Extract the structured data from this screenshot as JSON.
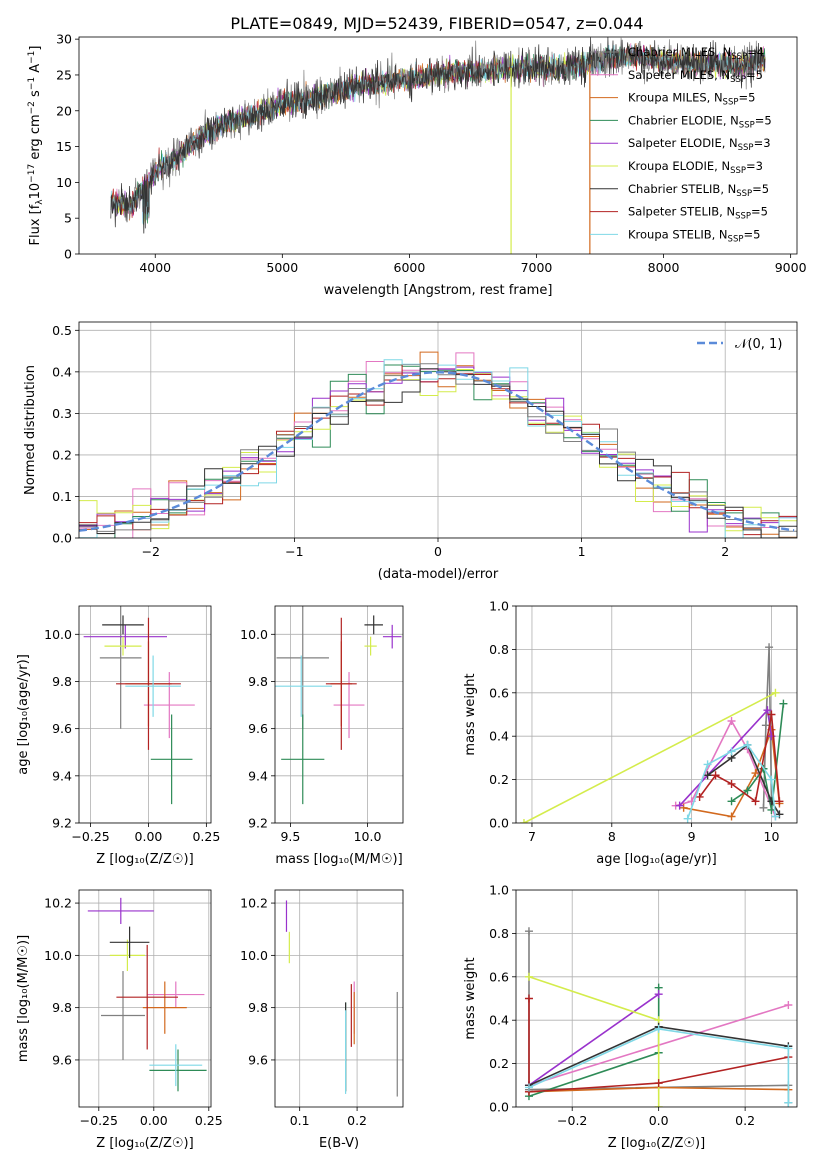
{
  "figure_title": "PLATE=0849, MJD=52439, FIBERID=0547, z=0.044",
  "models": [
    {
      "name": "Chabrier MILES, N",
      "nssp": "=4",
      "color": "#808080"
    },
    {
      "name": "Salpeter MILES, N",
      "nssp": "=5",
      "color": "#e377c2"
    },
    {
      "name": "Kroupa MILES, N",
      "nssp": "=5",
      "color": "#d2691e"
    },
    {
      "name": "Chabrier ELODIE, N",
      "nssp": "=5",
      "color": "#2e8b57"
    },
    {
      "name": "Salpeter ELODIE, N",
      "nssp": "=3",
      "color": "#9932cc"
    },
    {
      "name": "Kroupa ELODIE, N",
      "nssp": "=3",
      "color": "#d4ec4c"
    },
    {
      "name": "Chabrier STELIB, N",
      "nssp": "=5",
      "color": "#333333"
    },
    {
      "name": "Salpeter STELIB, N",
      "nssp": "=5",
      "color": "#b22222"
    },
    {
      "name": "Kroupa STELIB, N",
      "nssp": "=5",
      "color": "#7fd8e6"
    }
  ],
  "nssp_sub": "SSP",
  "chart_data": [
    {
      "id": "spectrum",
      "type": "line",
      "xlabel": "wavelength [Angstrom, rest frame]",
      "ylabel_parts": {
        "a": "Flux [f",
        "b": "λ",
        "c": "10",
        "d": "−17",
        "e": " erg cm",
        "f": "−2",
        "g": " s",
        "h": "−1",
        "i": " A",
        "j": "−1",
        "k": "]"
      },
      "xlim": [
        3400,
        9050
      ],
      "ylim": [
        0,
        30.3
      ],
      "xticks": [
        4000,
        5000,
        6000,
        7000,
        8000,
        9000
      ],
      "yticks": [
        0,
        5,
        10,
        15,
        20,
        25,
        30
      ],
      "observed_envelope": {
        "x": [
          3650,
          3800,
          4000,
          4200,
          4400,
          4600,
          4800,
          5000,
          5200,
          5400,
          5600,
          5800,
          6000,
          6200,
          6400,
          6600,
          6800,
          7000,
          7200,
          7400,
          7600,
          7800,
          8000,
          8200,
          8400,
          8600,
          8800
        ],
        "y": [
          7.5,
          6.5,
          11.5,
          14,
          17,
          18.5,
          19.5,
          21,
          21.5,
          22.5,
          23.5,
          24,
          24.5,
          25,
          25.5,
          25.5,
          26,
          26,
          26,
          26.5,
          27.5,
          27.5,
          27,
          26.5,
          26.5,
          26.5,
          27
        ]
      }
    },
    {
      "id": "residuals",
      "type": "bar",
      "xlabel": "(data-model)/error",
      "ylabel": "Normed distribution",
      "legend": "𝒩(0, 1)",
      "xlim": [
        -2.5,
        2.5
      ],
      "ylim": [
        0,
        0.52
      ],
      "xticks": [
        -2,
        -1,
        0,
        1,
        2
      ],
      "yticks": [
        0,
        0.1,
        0.2,
        0.3,
        0.4,
        0.5
      ],
      "bin_width": 0.125,
      "gaussian": {
        "mean": 0,
        "sigma": 1
      }
    },
    {
      "id": "age_vs_Z",
      "type": "scatter",
      "xlabel": "Z [log₁₀(Z/Z☉)]",
      "ylabel": "age  [log₁₀(age/yr)]",
      "xlim": [
        -0.3,
        0.27
      ],
      "ylim": [
        9.2,
        10.12
      ],
      "xticks": [
        -0.25,
        0.0,
        0.25
      ],
      "yticks": [
        9.2,
        9.4,
        9.6,
        9.8,
        10.0
      ],
      "points": [
        {
          "x": -0.12,
          "y": 9.9,
          "xerr": 0.09,
          "yerr": 0.3,
          "model": 0
        },
        {
          "x": 0.09,
          "y": 9.7,
          "xerr": 0.11,
          "yerr": 0.14,
          "model": 1
        },
        {
          "x": 0.0,
          "y": 9.79,
          "xerr": 0.1,
          "yerr": 0.18,
          "model": 2
        },
        {
          "x": 0.1,
          "y": 9.47,
          "xerr": 0.09,
          "yerr": 0.19,
          "model": 3
        },
        {
          "x": -0.1,
          "y": 9.99,
          "xerr": 0.18,
          "yerr": 0.05,
          "model": 4
        },
        {
          "x": -0.11,
          "y": 9.95,
          "xerr": 0.08,
          "yerr": 0.04,
          "model": 5
        },
        {
          "x": -0.11,
          "y": 10.04,
          "xerr": 0.09,
          "yerr": 0.04,
          "model": 6
        },
        {
          "x": 0.0,
          "y": 9.79,
          "xerr": 0.14,
          "yerr": 0.28,
          "model": 7
        },
        {
          "x": 0.02,
          "y": 9.78,
          "xerr": 0.12,
          "yerr": 0.13,
          "model": 8
        }
      ]
    },
    {
      "id": "age_vs_mass",
      "type": "scatter",
      "xlabel": "mass [log₁₀(M/M☉)]",
      "xlim": [
        9.4,
        10.23
      ],
      "ylim": [
        9.2,
        10.12
      ],
      "xticks": [
        9.5,
        10.0
      ],
      "yticks": [
        9.2,
        9.4,
        9.6,
        9.8,
        10.0
      ],
      "points": [
        {
          "x": 9.58,
          "y": 9.9,
          "xerr": 0.17,
          "yerr": 0.3,
          "model": 0
        },
        {
          "x": 9.88,
          "y": 9.7,
          "xerr": 0.1,
          "yerr": 0.14,
          "model": 1
        },
        {
          "x": 9.83,
          "y": 9.79,
          "xerr": 0.07,
          "yerr": 0.18,
          "model": 2
        },
        {
          "x": 9.58,
          "y": 9.47,
          "xerr": 0.14,
          "yerr": 0.19,
          "model": 3
        },
        {
          "x": 10.16,
          "y": 9.99,
          "xerr": 0.06,
          "yerr": 0.05,
          "model": 4
        },
        {
          "x": 10.02,
          "y": 9.95,
          "xerr": 0.04,
          "yerr": 0.04,
          "model": 5
        },
        {
          "x": 10.04,
          "y": 10.04,
          "xerr": 0.06,
          "yerr": 0.04,
          "model": 6
        },
        {
          "x": 9.83,
          "y": 9.79,
          "xerr": 0.1,
          "yerr": 0.28,
          "model": 7
        },
        {
          "x": 9.57,
          "y": 9.78,
          "xerr": 0.2,
          "yerr": 0.13,
          "model": 8
        }
      ]
    },
    {
      "id": "weight_vs_age",
      "type": "line",
      "xlabel": "age  [log₁₀(age/yr)]",
      "ylabel": "mass weight",
      "xlim": [
        6.8,
        10.32
      ],
      "ylim": [
        0,
        1.0
      ],
      "xticks": [
        7,
        8,
        9,
        10
      ],
      "yticks": [
        0.0,
        0.2,
        0.4,
        0.6,
        0.8,
        1.0
      ],
      "series": [
        {
          "model": 0,
          "x": [
            9.9,
            9.93,
            9.97,
            10.0
          ],
          "y": [
            0.07,
            0.45,
            0.81,
            0.1
          ]
        },
        {
          "model": 1,
          "x": [
            8.8,
            9.0,
            9.5,
            9.7,
            10.05
          ],
          "y": [
            0.08,
            0.1,
            0.47,
            0.34,
            0.03
          ]
        },
        {
          "model": 2,
          "x": [
            8.9,
            9.5,
            9.8,
            10.0,
            10.1
          ],
          "y": [
            0.07,
            0.03,
            0.23,
            0.43,
            0.09
          ]
        },
        {
          "model": 3,
          "x": [
            9.5,
            9.7,
            9.9,
            10.0,
            10.15
          ],
          "y": [
            0.1,
            0.15,
            0.25,
            0.06,
            0.55
          ]
        },
        {
          "model": 4,
          "x": [
            8.85,
            9.95,
            10.0
          ],
          "y": [
            0.08,
            0.52,
            0.4
          ]
        },
        {
          "model": 5,
          "x": [
            6.9,
            10.05
          ],
          "y": [
            0.0,
            0.6
          ]
        },
        {
          "model": 6,
          "x": [
            9.2,
            9.5,
            9.7,
            10.0,
            10.1
          ],
          "y": [
            0.22,
            0.3,
            0.36,
            0.1,
            0.04
          ]
        },
        {
          "model": 7,
          "x": [
            9.1,
            9.3,
            9.5,
            9.8,
            10.0,
            10.1
          ],
          "y": [
            0.12,
            0.22,
            0.18,
            0.1,
            0.5,
            0.1
          ]
        },
        {
          "model": 8,
          "x": [
            8.95,
            9.2,
            9.5,
            9.7,
            10.0,
            10.05
          ],
          "y": [
            0.02,
            0.27,
            0.33,
            0.36,
            0.2,
            0.03
          ]
        }
      ]
    },
    {
      "id": "mass_vs_Z",
      "type": "scatter",
      "xlabel": "Z [log₁₀(Z/Z☉)]",
      "ylabel": "mass [log₁₀(M/M☉)]",
      "xlim": [
        -0.34,
        0.26
      ],
      "ylim": [
        9.42,
        10.25
      ],
      "xticks": [
        -0.25,
        0.0,
        0.25
      ],
      "yticks": [
        9.6,
        9.8,
        10.0,
        10.2
      ],
      "points": [
        {
          "x": -0.14,
          "y": 9.77,
          "xerr": 0.1,
          "yerr": 0.17,
          "model": 0
        },
        {
          "x": 0.1,
          "y": 9.85,
          "xerr": 0.13,
          "yerr": 0.05,
          "model": 1
        },
        {
          "x": 0.05,
          "y": 9.8,
          "xerr": 0.1,
          "yerr": 0.1,
          "model": 2
        },
        {
          "x": 0.11,
          "y": 9.56,
          "xerr": 0.13,
          "yerr": 0.08,
          "model": 3
        },
        {
          "x": -0.15,
          "y": 10.17,
          "xerr": 0.15,
          "yerr": 0.05,
          "model": 4
        },
        {
          "x": -0.12,
          "y": 10.0,
          "xerr": 0.08,
          "yerr": 0.06,
          "model": 5
        },
        {
          "x": -0.11,
          "y": 10.05,
          "xerr": 0.09,
          "yerr": 0.06,
          "model": 6
        },
        {
          "x": -0.03,
          "y": 9.84,
          "xerr": 0.14,
          "yerr": 0.2,
          "model": 7
        },
        {
          "x": 0.1,
          "y": 9.58,
          "xerr": 0.12,
          "yerr": 0.08,
          "model": 8
        }
      ]
    },
    {
      "id": "mass_vs_ebv",
      "type": "scatter",
      "xlabel": "E(B-V)",
      "xlim": [
        0.057,
        0.28
      ],
      "ylim": [
        9.42,
        10.25
      ],
      "xticks": [
        0.1,
        0.2
      ],
      "yticks": [
        9.6,
        9.8,
        10.0,
        10.2
      ],
      "points": [
        {
          "x": 0.27,
          "y": 9.66,
          "yerr": 0.2,
          "model": 0
        },
        {
          "x": 0.195,
          "y": 9.8,
          "yerr": 0.1,
          "model": 1
        },
        {
          "x": 0.195,
          "y": 9.76,
          "yerr": 0.1,
          "model": 2
        },
        {
          "x": 0.18,
          "y": 9.65,
          "yerr": 0.17,
          "model": 3
        },
        {
          "x": 0.077,
          "y": 10.15,
          "yerr": 0.06,
          "model": 4
        },
        {
          "x": 0.082,
          "y": 10.03,
          "yerr": 0.06,
          "model": 5
        },
        {
          "x": 0.18,
          "y": 9.65,
          "yerr": 0.17,
          "model": 6
        },
        {
          "x": 0.19,
          "y": 9.77,
          "yerr": 0.12,
          "model": 7
        },
        {
          "x": 0.18,
          "y": 9.63,
          "yerr": 0.16,
          "model": 8
        }
      ]
    },
    {
      "id": "weight_vs_Z",
      "type": "line",
      "xlabel": "Z [log₁₀(Z/Z☉)]",
      "ylabel": "mass weight",
      "xlim": [
        -0.33,
        0.32
      ],
      "ylim": [
        0,
        1.0
      ],
      "xticks": [
        -0.2,
        0.0,
        0.2
      ],
      "yticks": [
        0.0,
        0.2,
        0.4,
        0.6,
        0.8,
        1.0
      ],
      "series": [
        {
          "model": 0,
          "x": [
            -0.3,
            -0.3,
            0.3,
            0.3
          ],
          "y": [
            0.81,
            0.08,
            0.1,
            0.02
          ]
        },
        {
          "model": 1,
          "x": [
            -0.3,
            0.3
          ],
          "y": [
            0.1,
            0.47
          ]
        },
        {
          "model": 2,
          "x": [
            -0.3,
            0.0,
            0.3
          ],
          "y": [
            0.07,
            0.09,
            0.08
          ]
        },
        {
          "model": 3,
          "x": [
            -0.3,
            0.0,
            0.0
          ],
          "y": [
            0.05,
            0.25,
            0.55
          ]
        },
        {
          "model": 4,
          "x": [
            -0.3,
            0.0
          ],
          "y": [
            0.1,
            0.52
          ]
        },
        {
          "model": 5,
          "x": [
            -0.3,
            0.0,
            0.0
          ],
          "y": [
            0.6,
            0.4,
            0.0
          ]
        },
        {
          "model": 6,
          "x": [
            -0.3,
            0.0,
            0.3
          ],
          "y": [
            0.1,
            0.37,
            0.28
          ]
        },
        {
          "model": 7,
          "x": [
            -0.3,
            -0.3,
            0.0,
            0.3
          ],
          "y": [
            0.5,
            0.07,
            0.11,
            0.23
          ]
        },
        {
          "model": 8,
          "x": [
            -0.3,
            0.0,
            0.3,
            0.3
          ],
          "y": [
            0.09,
            0.36,
            0.27,
            0.02
          ]
        }
      ]
    }
  ]
}
